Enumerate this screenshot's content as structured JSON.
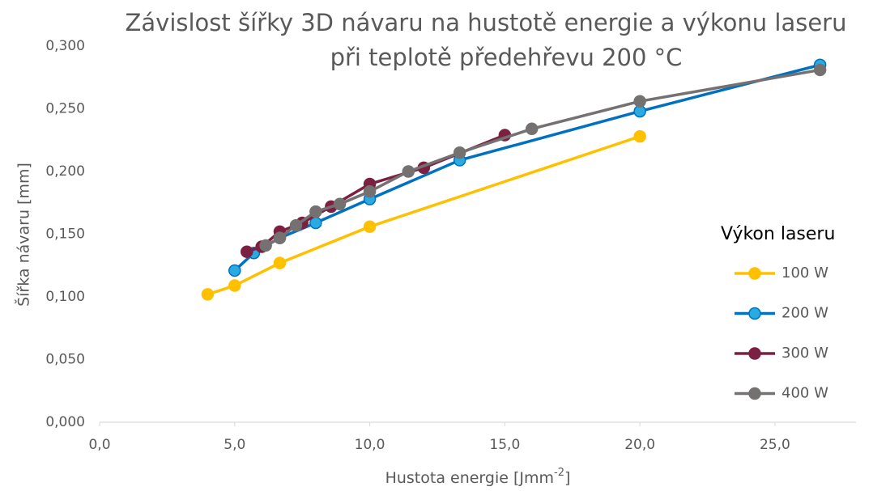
{
  "chart_data": {
    "type": "line",
    "title": [
      "Závislost šířky 3D návaru na hustotě energie a výkonu laseru",
      "při teplotě předehřevu 200 °C"
    ],
    "xlabel": [
      "Hustota energie [Jmm",
      "-2",
      "]"
    ],
    "ylabel": "Šířka návaru [mm]",
    "legend_title": "Výkon laseru",
    "legend": "right",
    "xlim": [
      0,
      28
    ],
    "xticks": [
      {
        "value": 0,
        "label": "0,0"
      },
      {
        "value": 5,
        "label": "5,0"
      },
      {
        "value": 10,
        "label": "10,0"
      },
      {
        "value": 15,
        "label": "15,0"
      },
      {
        "value": 20,
        "label": "20,0"
      },
      {
        "value": 25,
        "label": "25,0"
      }
    ],
    "ylim": [
      0,
      0.3
    ],
    "yticks": [
      {
        "value": 0,
        "label": "0,000"
      },
      {
        "value": 0.05,
        "label": "0,050"
      },
      {
        "value": 0.1,
        "label": "0,100"
      },
      {
        "value": 0.15,
        "label": "0,150"
      },
      {
        "value": 0.2,
        "label": "0,200"
      },
      {
        "value": 0.25,
        "label": "0,250"
      },
      {
        "value": 0.3,
        "label": "0,300"
      }
    ],
    "grid": false,
    "series": [
      {
        "name": "100 W",
        "color": "#FFC000",
        "marker_color": "#FFC000",
        "x": [
          4.0,
          5.0,
          6.67,
          10.0,
          20.0
        ],
        "values": [
          0.102,
          0.109,
          0.127,
          0.156,
          0.228
        ]
      },
      {
        "name": "200 W",
        "color": "#0070C0",
        "marker_color": "#29ABE2",
        "x": [
          5.0,
          5.71,
          6.67,
          8.0,
          10.0,
          13.33,
          20.0,
          26.67
        ],
        "values": [
          0.121,
          0.135,
          0.147,
          0.159,
          0.178,
          0.209,
          0.248,
          0.285
        ]
      },
      {
        "name": "300 W",
        "color": "#7B2041",
        "marker_color": "#7B2041",
        "x": [
          5.45,
          6.0,
          6.67,
          7.5,
          8.57,
          10.0,
          12.0,
          15.0
        ],
        "values": [
          0.136,
          0.14,
          0.152,
          0.159,
          0.172,
          0.19,
          0.203,
          0.229
        ]
      },
      {
        "name": "400 W",
        "color": "#767171",
        "marker_color": "#767171",
        "x": [
          6.15,
          6.67,
          7.27,
          8.0,
          8.89,
          10.0,
          11.43,
          13.33,
          16.0,
          20.0,
          26.67
        ],
        "values": [
          0.141,
          0.147,
          0.157,
          0.168,
          0.174,
          0.184,
          0.2,
          0.215,
          0.234,
          0.256,
          0.281
        ]
      }
    ]
  }
}
